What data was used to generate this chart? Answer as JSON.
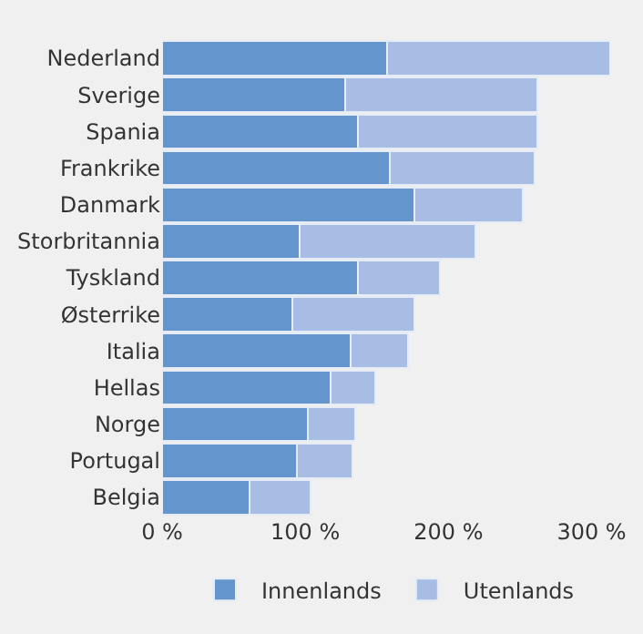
{
  "chart_data": {
    "type": "bar",
    "orientation": "horizontal",
    "stacked": true,
    "categories": [
      "Nederland",
      "Sverige",
      "Spania",
      "Frankrike",
      "Danmark",
      "Storbritannia",
      "Tyskland",
      "Østerrike",
      "Italia",
      "Hellas",
      "Norge",
      "Portugal",
      "Belgia"
    ],
    "series": [
      {
        "name": "Innenlands",
        "color": "#6495cd",
        "values": [
          157,
          128,
          137,
          159,
          176,
          96,
          137,
          91,
          132,
          118,
          102,
          94,
          61
        ]
      },
      {
        "name": "Utenlands",
        "color": "#a8bde3",
        "values": [
          156,
          134,
          125,
          101,
          76,
          123,
          57,
          85,
          40,
          31,
          33,
          39,
          43
        ]
      }
    ],
    "xlim": [
      0,
      313
    ],
    "xticks": [
      {
        "value": 0,
        "label": "0 %"
      },
      {
        "value": 100,
        "label": "100 %"
      },
      {
        "value": 200,
        "label": "200 %"
      },
      {
        "value": 300,
        "label": "300 %"
      }
    ],
    "grid": false,
    "legend": "bottom"
  }
}
